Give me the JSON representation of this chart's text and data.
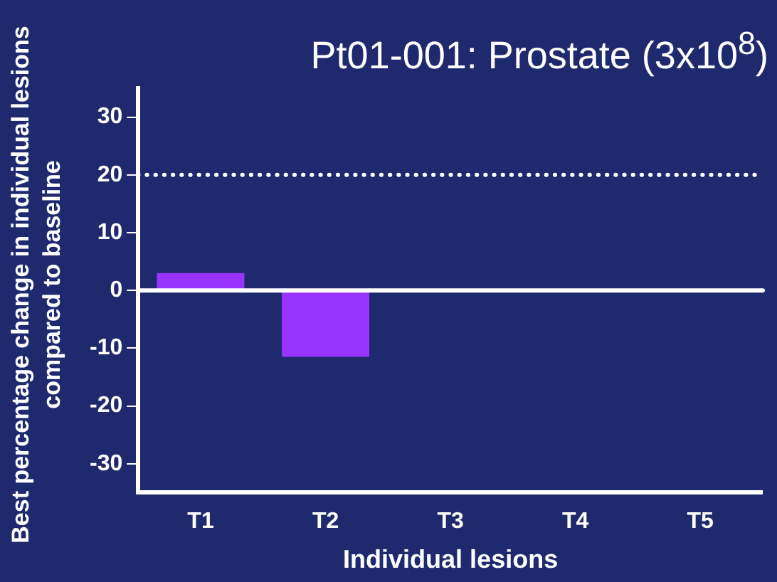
{
  "chart_data": {
    "type": "bar",
    "title": "Pt01-001: Prostate (3x10$^{8}$)",
    "xlabel": "Individual lesions",
    "ylabel": "Best percentage change in individual lesions compared to baseline",
    "categories": [
      "T1",
      "T2",
      "T3",
      "T4",
      "T5"
    ],
    "values": [
      3,
      -11.5,
      null,
      null,
      null
    ],
    "color": "#9933ff",
    "ylim": [
      -35,
      35
    ],
    "yticks": [
      -30,
      -20,
      -10,
      0,
      10,
      20,
      30
    ],
    "grid": false,
    "legend": false,
    "ref_lines": [
      {
        "axis": "y",
        "value": 20,
        "line_style": "dotted",
        "color": "#ffffff"
      },
      {
        "axis": "y",
        "value": 0,
        "line_style": "solid",
        "color": "#ffffff"
      }
    ]
  }
}
